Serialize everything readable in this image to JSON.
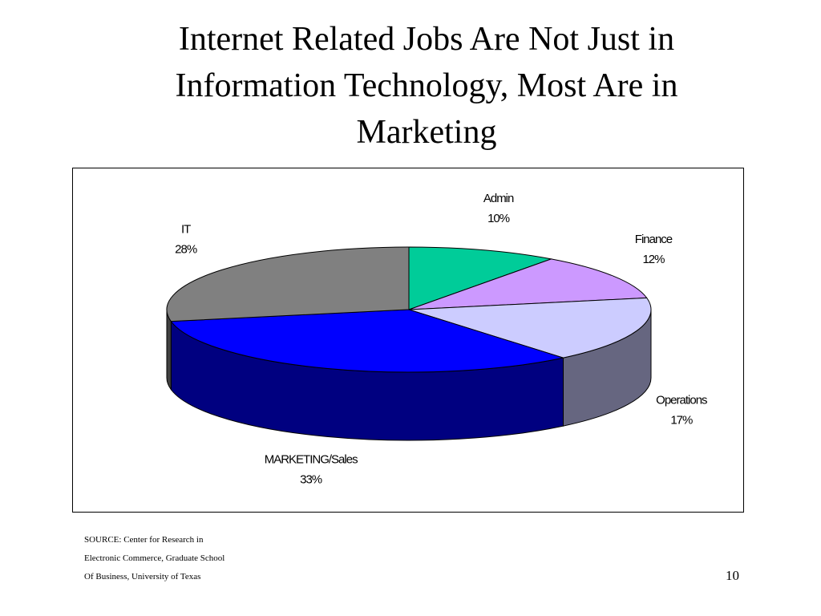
{
  "slide": {
    "title_lines": [
      "Internet Related Jobs Are Not Just in",
      "Information Technology, Most Are in",
      "Marketing"
    ],
    "source_lines": [
      "SOURCE: Center for Research in",
      "Electronic Commerce, Graduate School",
      "Of Business, University of Texas"
    ],
    "page_number": "10"
  },
  "chart_data": {
    "type": "pie",
    "style": "3d",
    "title": "Internet Related Jobs Are Not Just in Information Technology, Most Are in Marketing",
    "slices": [
      {
        "label": "Admin",
        "value": 10,
        "value_label": "10%",
        "color": "#00CC99"
      },
      {
        "label": "Finance",
        "value": 12,
        "value_label": "12%",
        "color": "#CC99FF"
      },
      {
        "label": "Operations",
        "value": 17,
        "value_label": "17%",
        "color": "#CCCCFF"
      },
      {
        "label": "MARKETING/Sales",
        "value": 33,
        "value_label": "33%",
        "color": "#0000FF"
      },
      {
        "label": "IT",
        "value": 28,
        "value_label": "28%",
        "color": "#808080"
      }
    ],
    "legend": "none",
    "data_labels": "outside"
  }
}
